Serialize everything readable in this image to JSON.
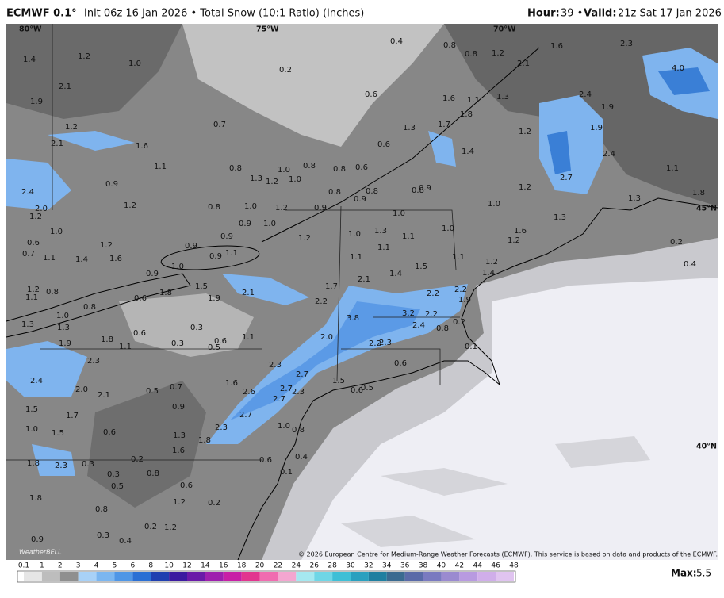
{
  "header": {
    "model": "ECMWF 0.1°",
    "description": "Init 06z 16 Jan 2026 • Total Snow (10:1 Ratio) (Inches)",
    "hour_label": "Hour:",
    "hour": "39 •",
    "valid_label": "Valid:",
    "valid": "21z Sat 17 Jan 2026"
  },
  "map": {
    "meridians": [
      "80°W",
      "75°W",
      "70°W"
    ],
    "parallels": [
      "45°N",
      "40°N"
    ],
    "logo": "WeatherBELL",
    "labels": [
      "0.4",
      "0.8",
      "0.8",
      "1.2",
      "2.1",
      "1.6",
      "2.3",
      "1.4",
      "1.2",
      "1.0",
      "0.2",
      "4.0",
      "2.1",
      "1.9",
      "0.6",
      "1.6",
      "1.1",
      "1.3",
      "2.4",
      "1.9",
      "1.8",
      "1.2",
      "0.7",
      "1.3",
      "1.7",
      "1.9",
      "1.2",
      "2.1",
      "1.6",
      "0.6",
      "1.4",
      "2.4",
      "1.1",
      "0.8",
      "1.0",
      "0.8",
      "0.8",
      "0.6",
      "1.1",
      "1.3",
      "1.2",
      "1.0",
      "2.7",
      "0.9",
      "0.8",
      "0.8",
      "0.9",
      "0.8",
      "0.9",
      "1.2",
      "2.4",
      "1.3",
      "1.8",
      "1.2",
      "0.8",
      "1.0",
      "1.2",
      "0.9",
      "1.0",
      "1.0",
      "1.2",
      "2.0",
      "0.9",
      "1.0",
      "1.3",
      "1.0",
      "1.3",
      "1.1",
      "1.0",
      "1.6",
      "1.2",
      "1.0",
      "1.2",
      "0.6",
      "1.2",
      "0.9",
      "0.9",
      "0.2",
      "0.7",
      "1.1",
      "1.4",
      "1.6",
      "1.1",
      "0.9",
      "1.1",
      "1.1",
      "1.1",
      "1.2",
      "1.0",
      "1.5",
      "0.4",
      "0.9",
      "1.4",
      "1.4",
      "2.1",
      "1.7",
      "1.5",
      "2.2",
      "1.2",
      "0.8",
      "1.8",
      "1.9",
      "2.1",
      "0.6",
      "2.2",
      "2.2",
      "1.9",
      "1.1",
      "0.8",
      "1.0",
      "3.2",
      "2.2",
      "3.8",
      "1.3",
      "1.3",
      "0.6",
      "0.3",
      "2.4",
      "0.8",
      "0.2",
      "1.9",
      "1.8",
      "1.1",
      "0.3",
      "0.5",
      "0.6",
      "1.1",
      "2.0",
      "2.2",
      "2.3",
      "0.1",
      "2.3",
      "2.3",
      "0.6",
      "2.7",
      "2.4",
      "1.6",
      "0.7",
      "1.5",
      "0.5",
      "0.6",
      "2.0",
      "2.1",
      "0.5",
      "2.6",
      "2.7",
      "2.3",
      "2.7",
      "1.5",
      "1.7",
      "0.9",
      "2.7",
      "1.0",
      "0.8",
      "1.0",
      "1.5",
      "0.6",
      "1.3",
      "2.3",
      "1.8",
      "1.6",
      "0.6",
      "0.4",
      "1.8",
      "2.3",
      "0.3",
      "0.2",
      "0.8",
      "0.3",
      "0.1",
      "0.5",
      "0.6",
      "1.8",
      "1.2",
      "0.2",
      "0.8",
      "0.2",
      "1.2",
      "0.3",
      "0.4",
      "0.9"
    ]
  },
  "footer": {
    "copyright": "© 2026 European Centre for Medium-Range Weather Forecasts (ECMWF). This service is based on data and products of the ECMWF.",
    "max_label": "Max:",
    "max": "5.5"
  },
  "legend": {
    "ticks": [
      "0.1",
      "1",
      "2",
      "3",
      "4",
      "5",
      "6",
      "8",
      "10",
      "12",
      "14",
      "16",
      "18",
      "20",
      "22",
      "24",
      "26",
      "28",
      "30",
      "32",
      "34",
      "36",
      "38",
      "40",
      "42",
      "44",
      "46",
      "48"
    ],
    "colors": [
      "#e6e6e6",
      "#bdbdbd",
      "#8f8f8f",
      "#a8d1f7",
      "#7bb6f0",
      "#4f96e6",
      "#2a6fd4",
      "#1f3fb0",
      "#3b1aa0",
      "#6a1aa8",
      "#9e1fae",
      "#c81fa6",
      "#e2358f",
      "#f06cb0",
      "#f4a6d0",
      "#a5e8f0",
      "#6fd6e6",
      "#3fbfd6",
      "#2aa0bf",
      "#1f7fa0",
      "#3a6a90",
      "#5a6aa8",
      "#7a7ac0",
      "#9a8ad0",
      "#b89ae0",
      "#d0aeea",
      "#e0c4f0"
    ]
  }
}
